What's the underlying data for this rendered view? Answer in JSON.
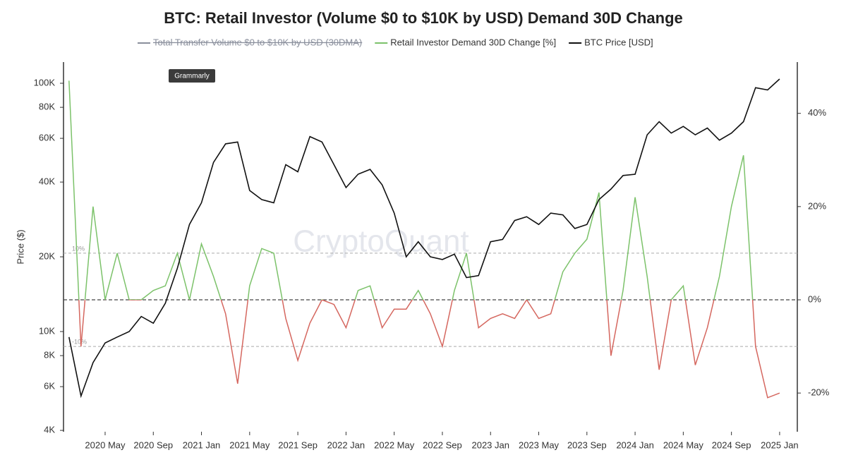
{
  "chart_data": {
    "type": "line",
    "title": "BTC: Retail Investor (Volume $0 to $10K by USD) Demand 30D Change",
    "hidden_series": [
      {
        "name": "Total Transfer Volume $0 to $10K by USD (30DMA)",
        "color": "#8a8f9c"
      }
    ],
    "x": [
      "2020-02",
      "2020-03",
      "2020-04",
      "2020-05",
      "2020-06",
      "2020-07",
      "2020-08",
      "2020-09",
      "2020-10",
      "2020-11",
      "2020-12",
      "2021-01",
      "2021-02",
      "2021-03",
      "2021-04",
      "2021-05",
      "2021-06",
      "2021-07",
      "2021-08",
      "2021-09",
      "2021-10",
      "2021-11",
      "2021-12",
      "2022-01",
      "2022-02",
      "2022-03",
      "2022-04",
      "2022-05",
      "2022-06",
      "2022-07",
      "2022-08",
      "2022-09",
      "2022-10",
      "2022-11",
      "2022-12",
      "2023-01",
      "2023-02",
      "2023-03",
      "2023-04",
      "2023-05",
      "2023-06",
      "2023-07",
      "2023-08",
      "2023-09",
      "2023-10",
      "2023-11",
      "2023-12",
      "2024-01",
      "2024-02",
      "2024-03",
      "2024-04",
      "2024-05",
      "2024-06",
      "2024-07",
      "2024-08",
      "2024-09",
      "2024-10",
      "2024-11",
      "2024-12",
      "2025-01"
    ],
    "series": [
      {
        "name": "Retail Investor Demand 30D Change [%]",
        "color": "#7cc26a",
        "negative_color": "#d5675f",
        "axis": "y2",
        "values": [
          47,
          -10,
          20,
          0,
          10,
          0,
          0,
          2,
          3,
          10,
          0,
          12,
          5,
          -3,
          -18,
          3,
          11,
          10,
          -4,
          -13,
          -5,
          0,
          -1,
          -6,
          2,
          3,
          -6,
          -2,
          -2,
          2,
          -3,
          -10,
          2,
          10,
          -6,
          -4,
          -3,
          -4,
          0,
          -4,
          -3,
          6,
          10,
          13,
          23,
          -12,
          2,
          22,
          5,
          -15,
          0,
          3,
          -14,
          -6,
          5,
          20,
          31,
          -10,
          -21,
          -20
        ]
      },
      {
        "name": "BTC Price [USD]",
        "color": "#111111",
        "values": [
          9500,
          5500,
          7500,
          9000,
          9500,
          10000,
          11500,
          10800,
          13000,
          18000,
          27000,
          33000,
          48000,
          57000,
          58000,
          37000,
          34000,
          33000,
          47000,
          44000,
          61000,
          58000,
          47000,
          38000,
          43000,
          45000,
          39000,
          30000,
          20000,
          23000,
          20000,
          19500,
          20500,
          16500,
          16800,
          23000,
          23500,
          28000,
          29000,
          27000,
          30000,
          29500,
          26000,
          27000,
          34000,
          37500,
          42500,
          43000,
          62000,
          70000,
          63000,
          67000,
          62000,
          66000,
          59000,
          63000,
          70000,
          96000,
          94000,
          104000
        ]
      }
    ],
    "xlim": [
      "2020-01",
      "2025-02"
    ],
    "xticks": [
      {
        "value": "2020-05",
        "label": "2020 May"
      },
      {
        "value": "2020-09",
        "label": "2020 Sep"
      },
      {
        "value": "2021-01",
        "label": "2021 Jan"
      },
      {
        "value": "2021-05",
        "label": "2021 May"
      },
      {
        "value": "2021-09",
        "label": "2021 Sep"
      },
      {
        "value": "2022-01",
        "label": "2022 Jan"
      },
      {
        "value": "2022-05",
        "label": "2022 May"
      },
      {
        "value": "2022-09",
        "label": "2022 Sep"
      },
      {
        "value": "2023-01",
        "label": "2023 Jan"
      },
      {
        "value": "2023-05",
        "label": "2023 May"
      },
      {
        "value": "2023-09",
        "label": "2023 Sep"
      },
      {
        "value": "2024-01",
        "label": "2024 Jan"
      },
      {
        "value": "2024-05",
        "label": "2024 May"
      },
      {
        "value": "2024-09",
        "label": "2024 Sep"
      },
      {
        "value": "2025-01",
        "label": "2025 Jan"
      }
    ],
    "y_label": "Price ($)",
    "log_y": true,
    "ylim": [
      3950,
      121700
    ],
    "yticks": [
      {
        "value": 4000,
        "label": "4K"
      },
      {
        "value": 6000,
        "label": "6K"
      },
      {
        "value": 8000,
        "label": "8K"
      },
      {
        "value": 10000,
        "label": "10K"
      },
      {
        "value": 20000,
        "label": "20K"
      },
      {
        "value": 40000,
        "label": "40K"
      },
      {
        "value": 60000,
        "label": "60K"
      },
      {
        "value": 80000,
        "label": "80K"
      },
      {
        "value": 100000,
        "label": "100K"
      }
    ],
    "y2lim": [
      -28.3,
      51
    ],
    "y2ticks": [
      {
        "value": -20,
        "label": "-20%"
      },
      {
        "value": 0,
        "label": "0%"
      },
      {
        "value": 20,
        "label": "20%"
      },
      {
        "value": 40,
        "label": "40%"
      }
    ],
    "zero_line": true,
    "reference_lines": [
      {
        "value": 10,
        "label": "10%"
      },
      {
        "value": -10,
        "label": "-10%"
      }
    ],
    "watermark": "CryptoQuant",
    "overlay_label": "Grammarly"
  }
}
